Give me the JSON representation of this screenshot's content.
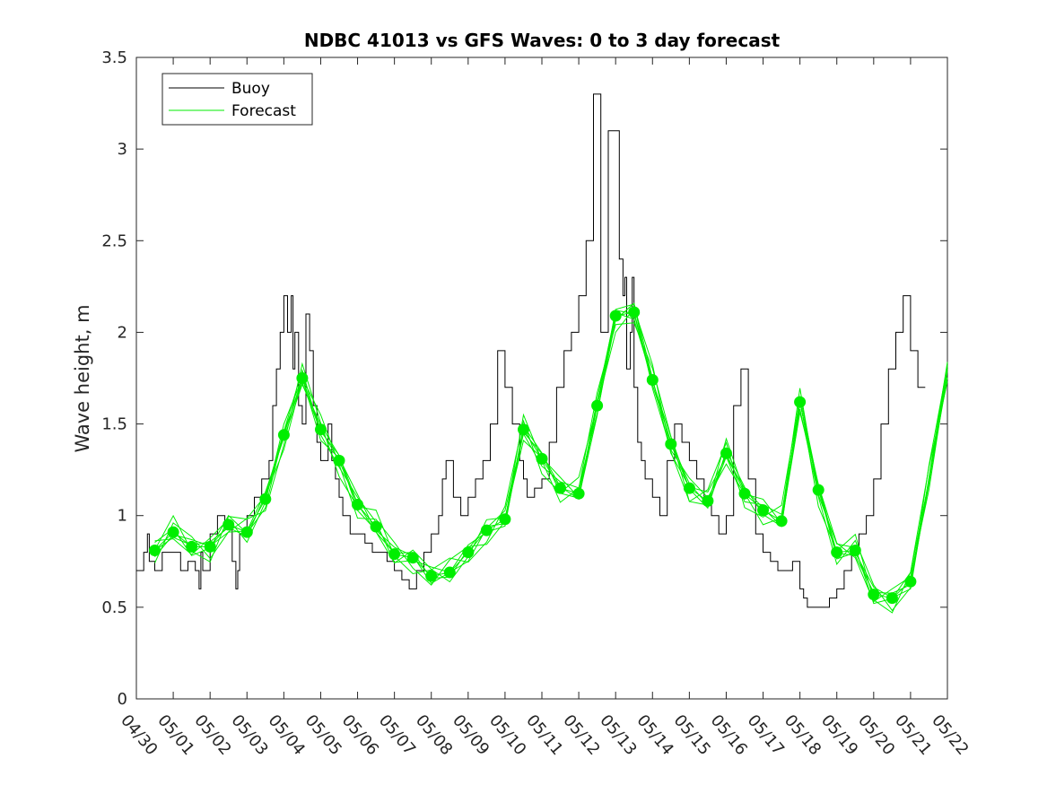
{
  "chart_data": {
    "type": "line",
    "title": "NDBC 41013 vs GFS Waves: 0 to 3 day forecast",
    "xlabel": "",
    "ylabel": "Wave height, m",
    "xlim": [
      0,
      22
    ],
    "ylim": [
      0,
      3.5
    ],
    "yticks": [
      "0",
      "0.5",
      "1",
      "1.5",
      "2",
      "2.5",
      "3",
      "3.5"
    ],
    "xtick_labels": [
      "04/30",
      "05/01",
      "05/02",
      "05/03",
      "05/04",
      "05/05",
      "05/06",
      "05/07",
      "05/08",
      "05/09",
      "05/10",
      "05/11",
      "05/12",
      "05/13",
      "05/14",
      "05/15",
      "05/16",
      "05/17",
      "05/18",
      "05/19",
      "05/20",
      "05/21",
      "05/22"
    ],
    "legend": {
      "location": "top-left",
      "entries": [
        "Buoy",
        "Forecast"
      ]
    },
    "colors": {
      "buoy": "#000000",
      "forecast": "#00ee00",
      "marker": "#00ee00"
    },
    "series": [
      {
        "name": "Buoy",
        "x": [
          0,
          0.2,
          0.3,
          0.35,
          0.5,
          0.7,
          0.9,
          1.0,
          1.2,
          1.4,
          1.6,
          1.7,
          1.75,
          1.8,
          2.0,
          2.2,
          2.4,
          2.6,
          2.7,
          2.75,
          2.8,
          3.0,
          3.2,
          3.4,
          3.6,
          3.7,
          3.8,
          3.9,
          4.0,
          4.1,
          4.2,
          4.25,
          4.3,
          4.4,
          4.5,
          4.6,
          4.7,
          4.8,
          4.9,
          5.0,
          5.1,
          5.2,
          5.3,
          5.4,
          5.5,
          5.6,
          5.8,
          6.0,
          6.2,
          6.4,
          6.6,
          6.8,
          7.0,
          7.2,
          7.4,
          7.6,
          7.8,
          8.0,
          8.2,
          8.3,
          8.4,
          8.6,
          8.8,
          9.0,
          9.2,
          9.4,
          9.6,
          9.8,
          10.0,
          10.2,
          10.4,
          10.5,
          10.6,
          10.8,
          11.0,
          11.2,
          11.4,
          11.6,
          11.8,
          12.0,
          12.2,
          12.4,
          12.6,
          12.8,
          13.0,
          13.1,
          13.2,
          13.25,
          13.3,
          13.4,
          13.45,
          13.5,
          13.6,
          13.7,
          13.8,
          14.0,
          14.2,
          14.4,
          14.6,
          14.8,
          15.0,
          15.2,
          15.4,
          15.6,
          15.8,
          16.0,
          16.2,
          16.4,
          16.6,
          16.8,
          17.0,
          17.2,
          17.4,
          17.6,
          17.8,
          18.0,
          18.1,
          18.2,
          18.4,
          18.6,
          18.8,
          19.0,
          19.2,
          19.4,
          19.6,
          19.8,
          20.0,
          20.2,
          20.4,
          20.6,
          20.8,
          21.0,
          21.2
        ],
        "values": [
          0.7,
          0.8,
          0.9,
          0.75,
          0.7,
          0.8,
          0.8,
          0.8,
          0.7,
          0.75,
          0.7,
          0.6,
          0.8,
          0.7,
          0.9,
          1.0,
          0.95,
          0.75,
          0.6,
          0.7,
          0.9,
          1.0,
          1.1,
          1.2,
          1.3,
          1.6,
          1.8,
          2.0,
          2.2,
          2.0,
          2.2,
          1.8,
          2.0,
          1.6,
          1.5,
          2.1,
          1.9,
          1.6,
          1.4,
          1.3,
          1.3,
          1.5,
          1.3,
          1.2,
          1.1,
          1.0,
          0.9,
          0.9,
          0.85,
          0.8,
          0.8,
          0.75,
          0.7,
          0.65,
          0.6,
          0.7,
          0.8,
          0.9,
          1.0,
          1.2,
          1.3,
          1.1,
          1.0,
          1.1,
          1.2,
          1.3,
          1.5,
          1.9,
          1.7,
          1.5,
          1.3,
          1.2,
          1.1,
          1.15,
          1.2,
          1.4,
          1.7,
          1.9,
          2.0,
          2.2,
          2.5,
          3.3,
          2.0,
          3.1,
          3.1,
          2.4,
          2.2,
          2.3,
          1.8,
          2.0,
          2.3,
          1.7,
          1.4,
          1.3,
          1.2,
          1.1,
          1.0,
          1.3,
          1.5,
          1.4,
          1.3,
          1.2,
          1.1,
          1.0,
          0.9,
          1.0,
          1.6,
          1.8,
          1.2,
          0.9,
          0.8,
          0.75,
          0.7,
          0.7,
          0.75,
          0.6,
          0.55,
          0.5,
          0.5,
          0.5,
          0.55,
          0.6,
          0.7,
          0.8,
          0.9,
          1.0,
          1.2,
          1.5,
          1.8,
          2.0,
          2.2,
          1.9,
          1.7
        ]
      },
      {
        "name": "Forecast",
        "x": [
          0.5,
          1.0,
          1.5,
          2.0,
          2.5,
          3.0,
          3.5,
          4.0,
          4.5,
          5.0,
          5.5,
          6.0,
          6.5,
          7.0,
          7.5,
          8.0,
          8.5,
          9.0,
          9.5,
          10.0,
          10.5,
          11.0,
          11.5,
          12.0,
          12.5,
          13.0,
          13.5,
          14.0,
          14.5,
          15.0,
          15.5,
          16.0,
          16.5,
          17.0,
          17.5,
          18.0,
          18.5,
          19.0,
          19.5,
          20.0,
          20.5,
          21.0,
          21.5,
          22.0
        ],
        "values": [
          0.81,
          0.91,
          0.83,
          0.83,
          0.95,
          0.91,
          1.09,
          1.44,
          1.75,
          1.47,
          1.3,
          1.06,
          0.94,
          0.79,
          0.77,
          0.67,
          0.69,
          0.8,
          0.92,
          0.98,
          1.47,
          1.31,
          1.15,
          1.12,
          1.6,
          2.09,
          2.11,
          1.74,
          1.39,
          1.15,
          1.08,
          1.34,
          1.12,
          1.03,
          0.97,
          1.62,
          1.14,
          0.8,
          0.81,
          0.57,
          0.55,
          0.64,
          1.2,
          1.8
        ]
      }
    ],
    "markers": {
      "name": "Forecast nowcast points",
      "x": [
        0.5,
        1.0,
        1.5,
        2.0,
        2.5,
        3.0,
        3.5,
        4.0,
        4.5,
        5.0,
        5.5,
        6.0,
        6.5,
        7.0,
        7.5,
        8.0,
        8.5,
        9.0,
        9.5,
        10.0,
        10.5,
        11.0,
        11.5,
        12.0,
        12.5,
        13.0,
        13.5,
        14.0,
        14.5,
        15.0,
        15.5,
        16.0,
        16.5,
        17.0,
        17.5,
        18.0,
        18.5,
        19.0,
        19.5,
        20.0,
        20.5,
        21.0
      ],
      "values": [
        0.81,
        0.91,
        0.83,
        0.83,
        0.95,
        0.91,
        1.09,
        1.44,
        1.75,
        1.47,
        1.3,
        1.06,
        0.94,
        0.79,
        0.77,
        0.67,
        0.69,
        0.8,
        0.92,
        0.98,
        1.47,
        1.31,
        1.15,
        1.12,
        1.6,
        2.09,
        2.11,
        1.74,
        1.39,
        1.15,
        1.08,
        1.34,
        1.12,
        1.03,
        0.97,
        1.62,
        1.14,
        0.8,
        0.81,
        0.57,
        0.55,
        0.64
      ]
    }
  }
}
